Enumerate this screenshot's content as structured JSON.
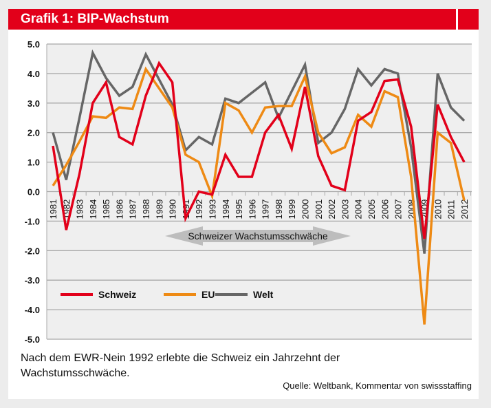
{
  "header": {
    "title": "Grafik 1: BIP-Wachstum"
  },
  "caption": "Nach dem EWR-Nein 1992 erlebte die Schweiz ein Jahrzehnt der Wachstumsschwäche.",
  "source": "Quelle: Weltbank, Kommentar von swissstaffing",
  "chart_data": {
    "type": "line",
    "title": "",
    "xlabel": "",
    "ylabel": "",
    "ylim": [
      -5,
      5
    ],
    "yticks": [
      "5.0",
      "4.0",
      "3.0",
      "2.0",
      "1.0",
      "0.0",
      "-1.0",
      "-2.0",
      "-3.0",
      "-4.0",
      "-5.0"
    ],
    "grid": true,
    "legend": "lower-left",
    "annotation": "Schweizer Wachstumsschwäche",
    "annotation_range": [
      1991,
      2001
    ],
    "x": [
      1981,
      1982,
      1983,
      1984,
      1985,
      1986,
      1987,
      1988,
      1989,
      1990,
      1991,
      1992,
      1993,
      1994,
      1995,
      1996,
      1997,
      1998,
      1999,
      2000,
      2001,
      2002,
      2003,
      2004,
      2005,
      2006,
      2007,
      2008,
      2009,
      2010,
      2011,
      2012
    ],
    "series": [
      {
        "name": "Schweiz",
        "color": "#e2001a",
        "values": [
          1.55,
          -1.3,
          0.6,
          3.0,
          3.7,
          1.85,
          1.6,
          3.25,
          4.35,
          3.7,
          -0.9,
          0.0,
          -0.1,
          1.25,
          0.5,
          0.5,
          2.0,
          2.6,
          1.45,
          3.55,
          1.2,
          0.2,
          0.05,
          2.4,
          2.7,
          3.75,
          3.8,
          2.2,
          -1.6,
          2.95,
          1.85,
          1.0
        ]
      },
      {
        "name": "EU",
        "color": "#ee8a14",
        "values": [
          0.2,
          0.9,
          1.7,
          2.55,
          2.5,
          2.85,
          2.8,
          4.15,
          3.5,
          2.85,
          1.25,
          1.0,
          -0.15,
          3.0,
          2.75,
          2.0,
          2.85,
          2.9,
          2.9,
          3.9,
          2.0,
          1.3,
          1.5,
          2.6,
          2.2,
          3.4,
          3.2,
          0.5,
          -4.5,
          2.0,
          1.65,
          -0.3
        ]
      },
      {
        "name": "Welt",
        "color": "#666666",
        "values": [
          2.0,
          0.4,
          2.5,
          4.7,
          3.85,
          3.25,
          3.55,
          4.65,
          3.8,
          2.95,
          1.4,
          1.85,
          1.6,
          3.15,
          3.0,
          3.35,
          3.7,
          2.5,
          3.4,
          4.3,
          1.65,
          2.0,
          2.8,
          4.15,
          3.6,
          4.15,
          4.0,
          1.5,
          -2.1,
          4.0,
          2.85,
          2.4
        ]
      }
    ]
  }
}
